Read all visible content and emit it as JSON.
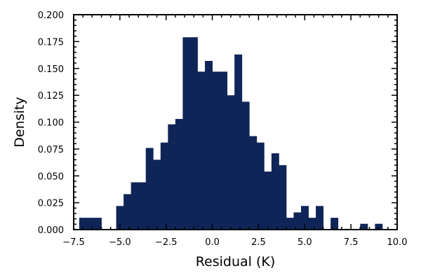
{
  "chart_data": {
    "type": "bar",
    "subtype": "histogram",
    "title": "",
    "xlabel": "Residual (K)",
    "ylabel": "Density",
    "xlim": [
      -7.5,
      10.0
    ],
    "ylim": [
      0,
      0.2
    ],
    "x_ticks": [
      -7.5,
      -5.0,
      -2.5,
      0.0,
      2.5,
      5.0,
      7.5,
      10.0
    ],
    "x_tick_labels": [
      "−7.5",
      "−5.0",
      "−2.5",
      "0.0",
      "2.5",
      "5.0",
      "7.5",
      "10.0"
    ],
    "y_ticks": [
      0,
      0.025,
      0.05,
      0.075,
      0.1,
      0.125,
      0.15,
      0.175,
      0.2
    ],
    "y_tick_labels": [
      "0.000",
      "0.025",
      "0.050",
      "0.075",
      "0.100",
      "0.125",
      "0.150",
      "0.175",
      "0.200"
    ],
    "bar_color": "#0f2557",
    "grid": false,
    "bins": [
      {
        "x0": -7.2,
        "x1": -6.8,
        "value": 0.011
      },
      {
        "x0": -6.8,
        "x1": -6.4,
        "value": 0.011
      },
      {
        "x0": -6.4,
        "x1": -6.0,
        "value": 0.011
      },
      {
        "x0": -5.2,
        "x1": -4.8,
        "value": 0.022
      },
      {
        "x0": -4.8,
        "x1": -4.4,
        "value": 0.033
      },
      {
        "x0": -4.4,
        "x1": -4.0,
        "value": 0.044
      },
      {
        "x0": -4.0,
        "x1": -3.6,
        "value": 0.044
      },
      {
        "x0": -3.6,
        "x1": -3.2,
        "value": 0.076
      },
      {
        "x0": -3.2,
        "x1": -2.8,
        "value": 0.065
      },
      {
        "x0": -2.8,
        "x1": -2.4,
        "value": 0.081
      },
      {
        "x0": -2.4,
        "x1": -2.0,
        "value": 0.098
      },
      {
        "x0": -2.0,
        "x1": -1.6,
        "value": 0.103
      },
      {
        "x0": -1.6,
        "x1": -1.2,
        "value": 0.179
      },
      {
        "x0": -1.2,
        "x1": -0.8,
        "value": 0.179
      },
      {
        "x0": -0.8,
        "x1": -0.4,
        "value": 0.147
      },
      {
        "x0": -0.4,
        "x1": 0.0,
        "value": 0.157
      },
      {
        "x0": 0.0,
        "x1": 0.4,
        "value": 0.147
      },
      {
        "x0": 0.4,
        "x1": 0.8,
        "value": 0.147
      },
      {
        "x0": 0.8,
        "x1": 1.2,
        "value": 0.125
      },
      {
        "x0": 1.2,
        "x1": 1.6,
        "value": 0.163
      },
      {
        "x0": 1.6,
        "x1": 2.0,
        "value": 0.119
      },
      {
        "x0": 2.0,
        "x1": 2.4,
        "value": 0.087
      },
      {
        "x0": 2.4,
        "x1": 2.8,
        "value": 0.081
      },
      {
        "x0": 2.8,
        "x1": 3.2,
        "value": 0.054
      },
      {
        "x0": 3.2,
        "x1": 3.6,
        "value": 0.071
      },
      {
        "x0": 3.6,
        "x1": 4.0,
        "value": 0.06
      },
      {
        "x0": 4.0,
        "x1": 4.4,
        "value": 0.011
      },
      {
        "x0": 4.4,
        "x1": 4.8,
        "value": 0.016
      },
      {
        "x0": 4.8,
        "x1": 5.2,
        "value": 0.022
      },
      {
        "x0": 5.2,
        "x1": 5.6,
        "value": 0.011
      },
      {
        "x0": 5.6,
        "x1": 6.0,
        "value": 0.022
      },
      {
        "x0": 6.4,
        "x1": 6.8,
        "value": 0.011
      },
      {
        "x0": 8.0,
        "x1": 8.4,
        "value": 0.0054
      },
      {
        "x0": 8.8,
        "x1": 9.2,
        "value": 0.0054
      }
    ]
  }
}
